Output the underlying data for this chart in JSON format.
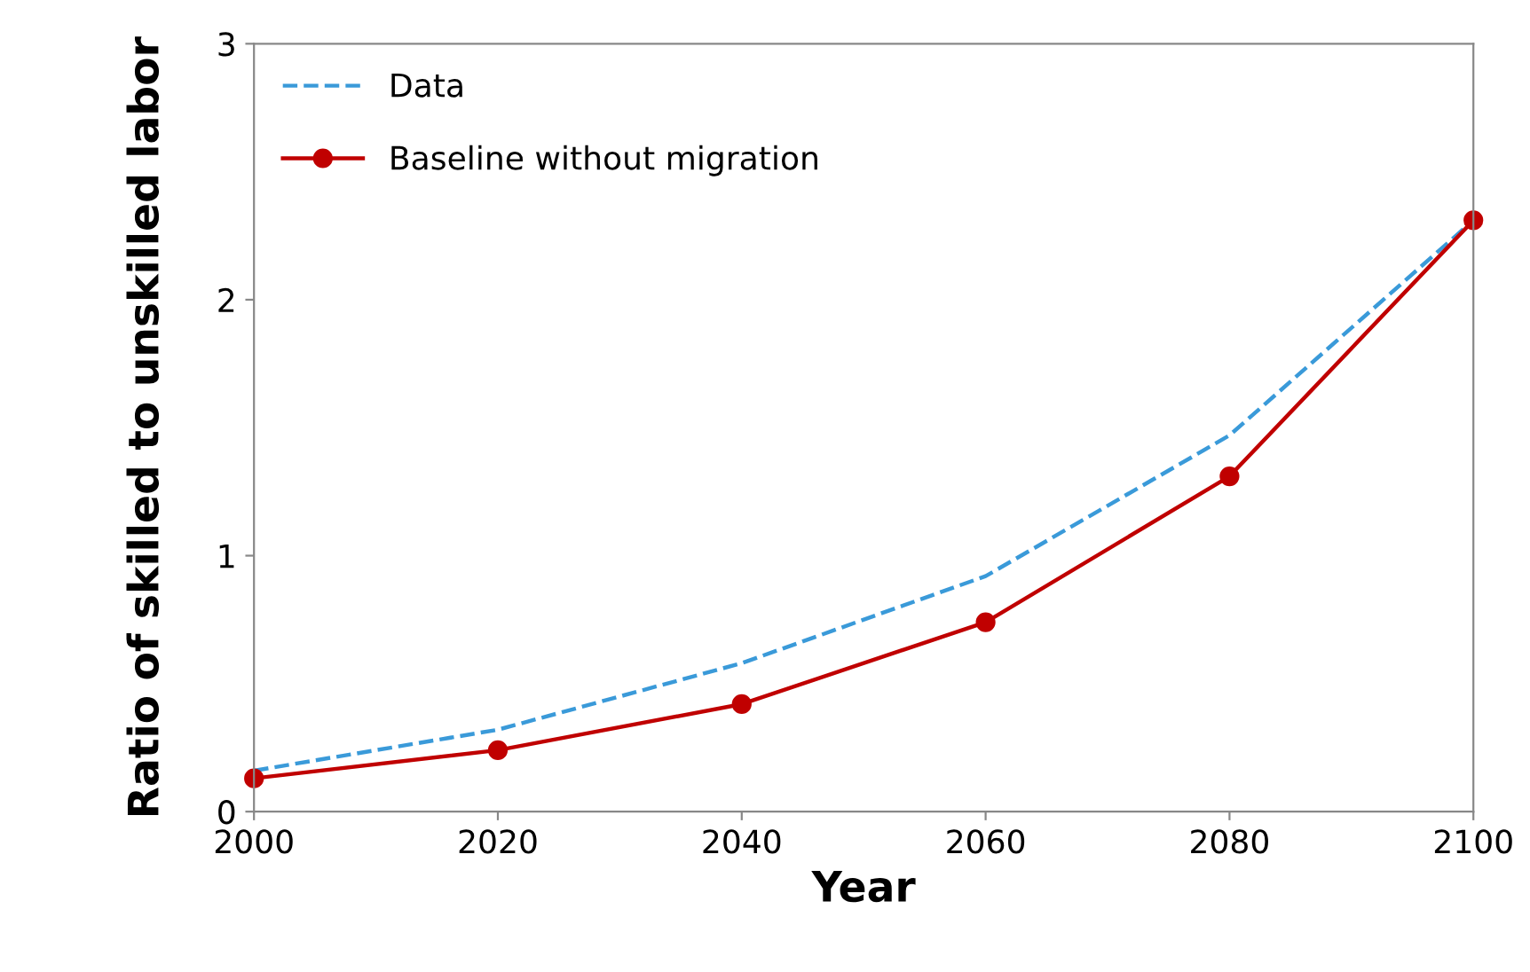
{
  "chart_data": {
    "type": "line",
    "xlabel": "Year",
    "ylabel": "Ratio of skilled to unskilled labor",
    "x": [
      2000,
      2020,
      2040,
      2060,
      2080,
      2100
    ],
    "series": [
      {
        "name": "Data",
        "color": "#3a9ad9",
        "values": [
          0.16,
          0.32,
          0.58,
          0.92,
          1.47,
          2.31
        ],
        "line_style": "dashed",
        "marker": "none"
      },
      {
        "name": "Baseline without migration",
        "color": "#c00000",
        "values": [
          0.13,
          0.24,
          0.42,
          0.74,
          1.31,
          2.31
        ],
        "line_style": "solid",
        "marker": "circle"
      }
    ],
    "xlim": [
      2000,
      2100
    ],
    "xticks": [
      2000,
      2020,
      2040,
      2060,
      2080,
      2100
    ],
    "ylim": [
      0,
      3
    ],
    "yticks": [
      0,
      1,
      2,
      3
    ],
    "grid": false,
    "legend": "top left"
  }
}
